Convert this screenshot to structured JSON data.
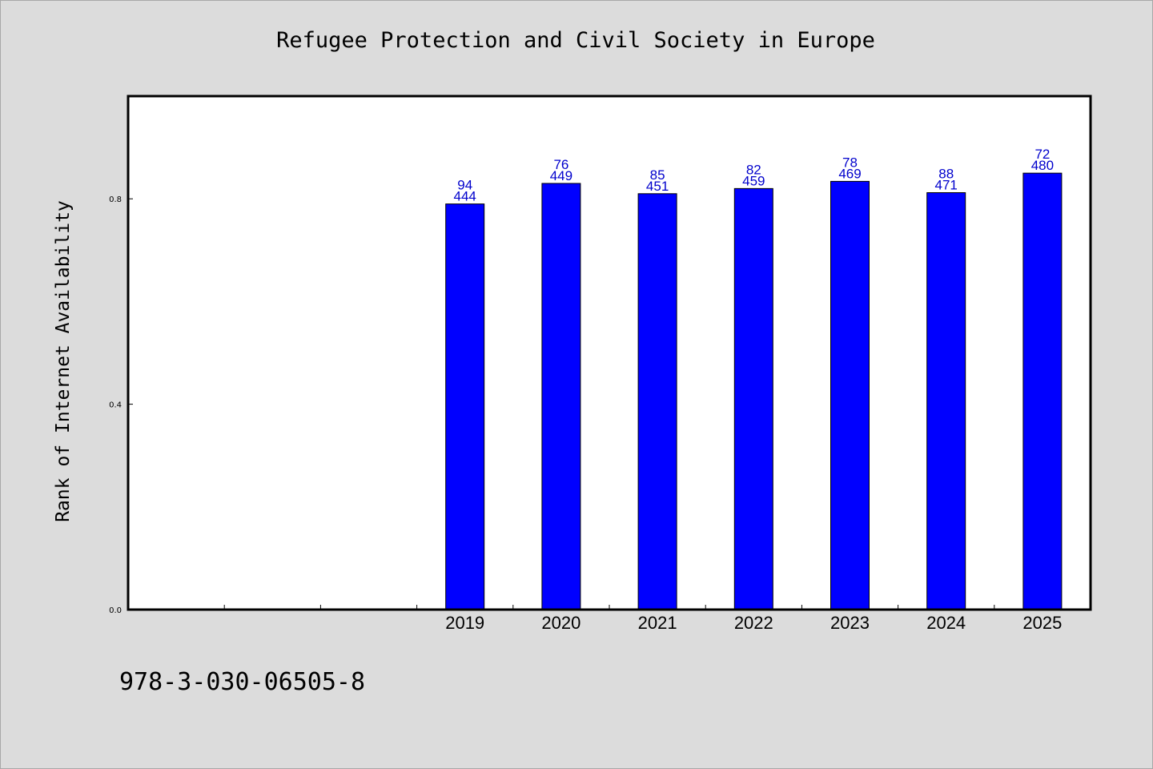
{
  "chart_data": {
    "type": "bar",
    "title": "Refugee Protection and Civil Society in Europe",
    "xlabel": "",
    "ylabel": "Rank of Internet Availability",
    "ylim": [
      0,
      1.0
    ],
    "y_ticks": [
      "0.0",
      "0.4",
      "0.8"
    ],
    "xlim_categories_slots": 10,
    "categories": [
      "2019",
      "2020",
      "2021",
      "2022",
      "2023",
      "2024",
      "2025"
    ],
    "category_slot_start": 3,
    "values": [
      0.79,
      0.83,
      0.81,
      0.82,
      0.834,
      0.812,
      0.85
    ],
    "data_labels_top": [
      "94",
      "76",
      "85",
      "82",
      "78",
      "88",
      "72"
    ],
    "data_labels_bottom": [
      "444",
      "449",
      "451",
      "459",
      "469",
      "471",
      "480"
    ],
    "grid": false,
    "legend": "none",
    "colors": {
      "bar_fill": "#0000ff",
      "label": "#0000cc",
      "plot_bg": "#ffffff",
      "page_bg": "#dcdcdc",
      "axis": "#000000"
    }
  },
  "footer": {
    "isbn": "978-3-030-06505-8"
  }
}
